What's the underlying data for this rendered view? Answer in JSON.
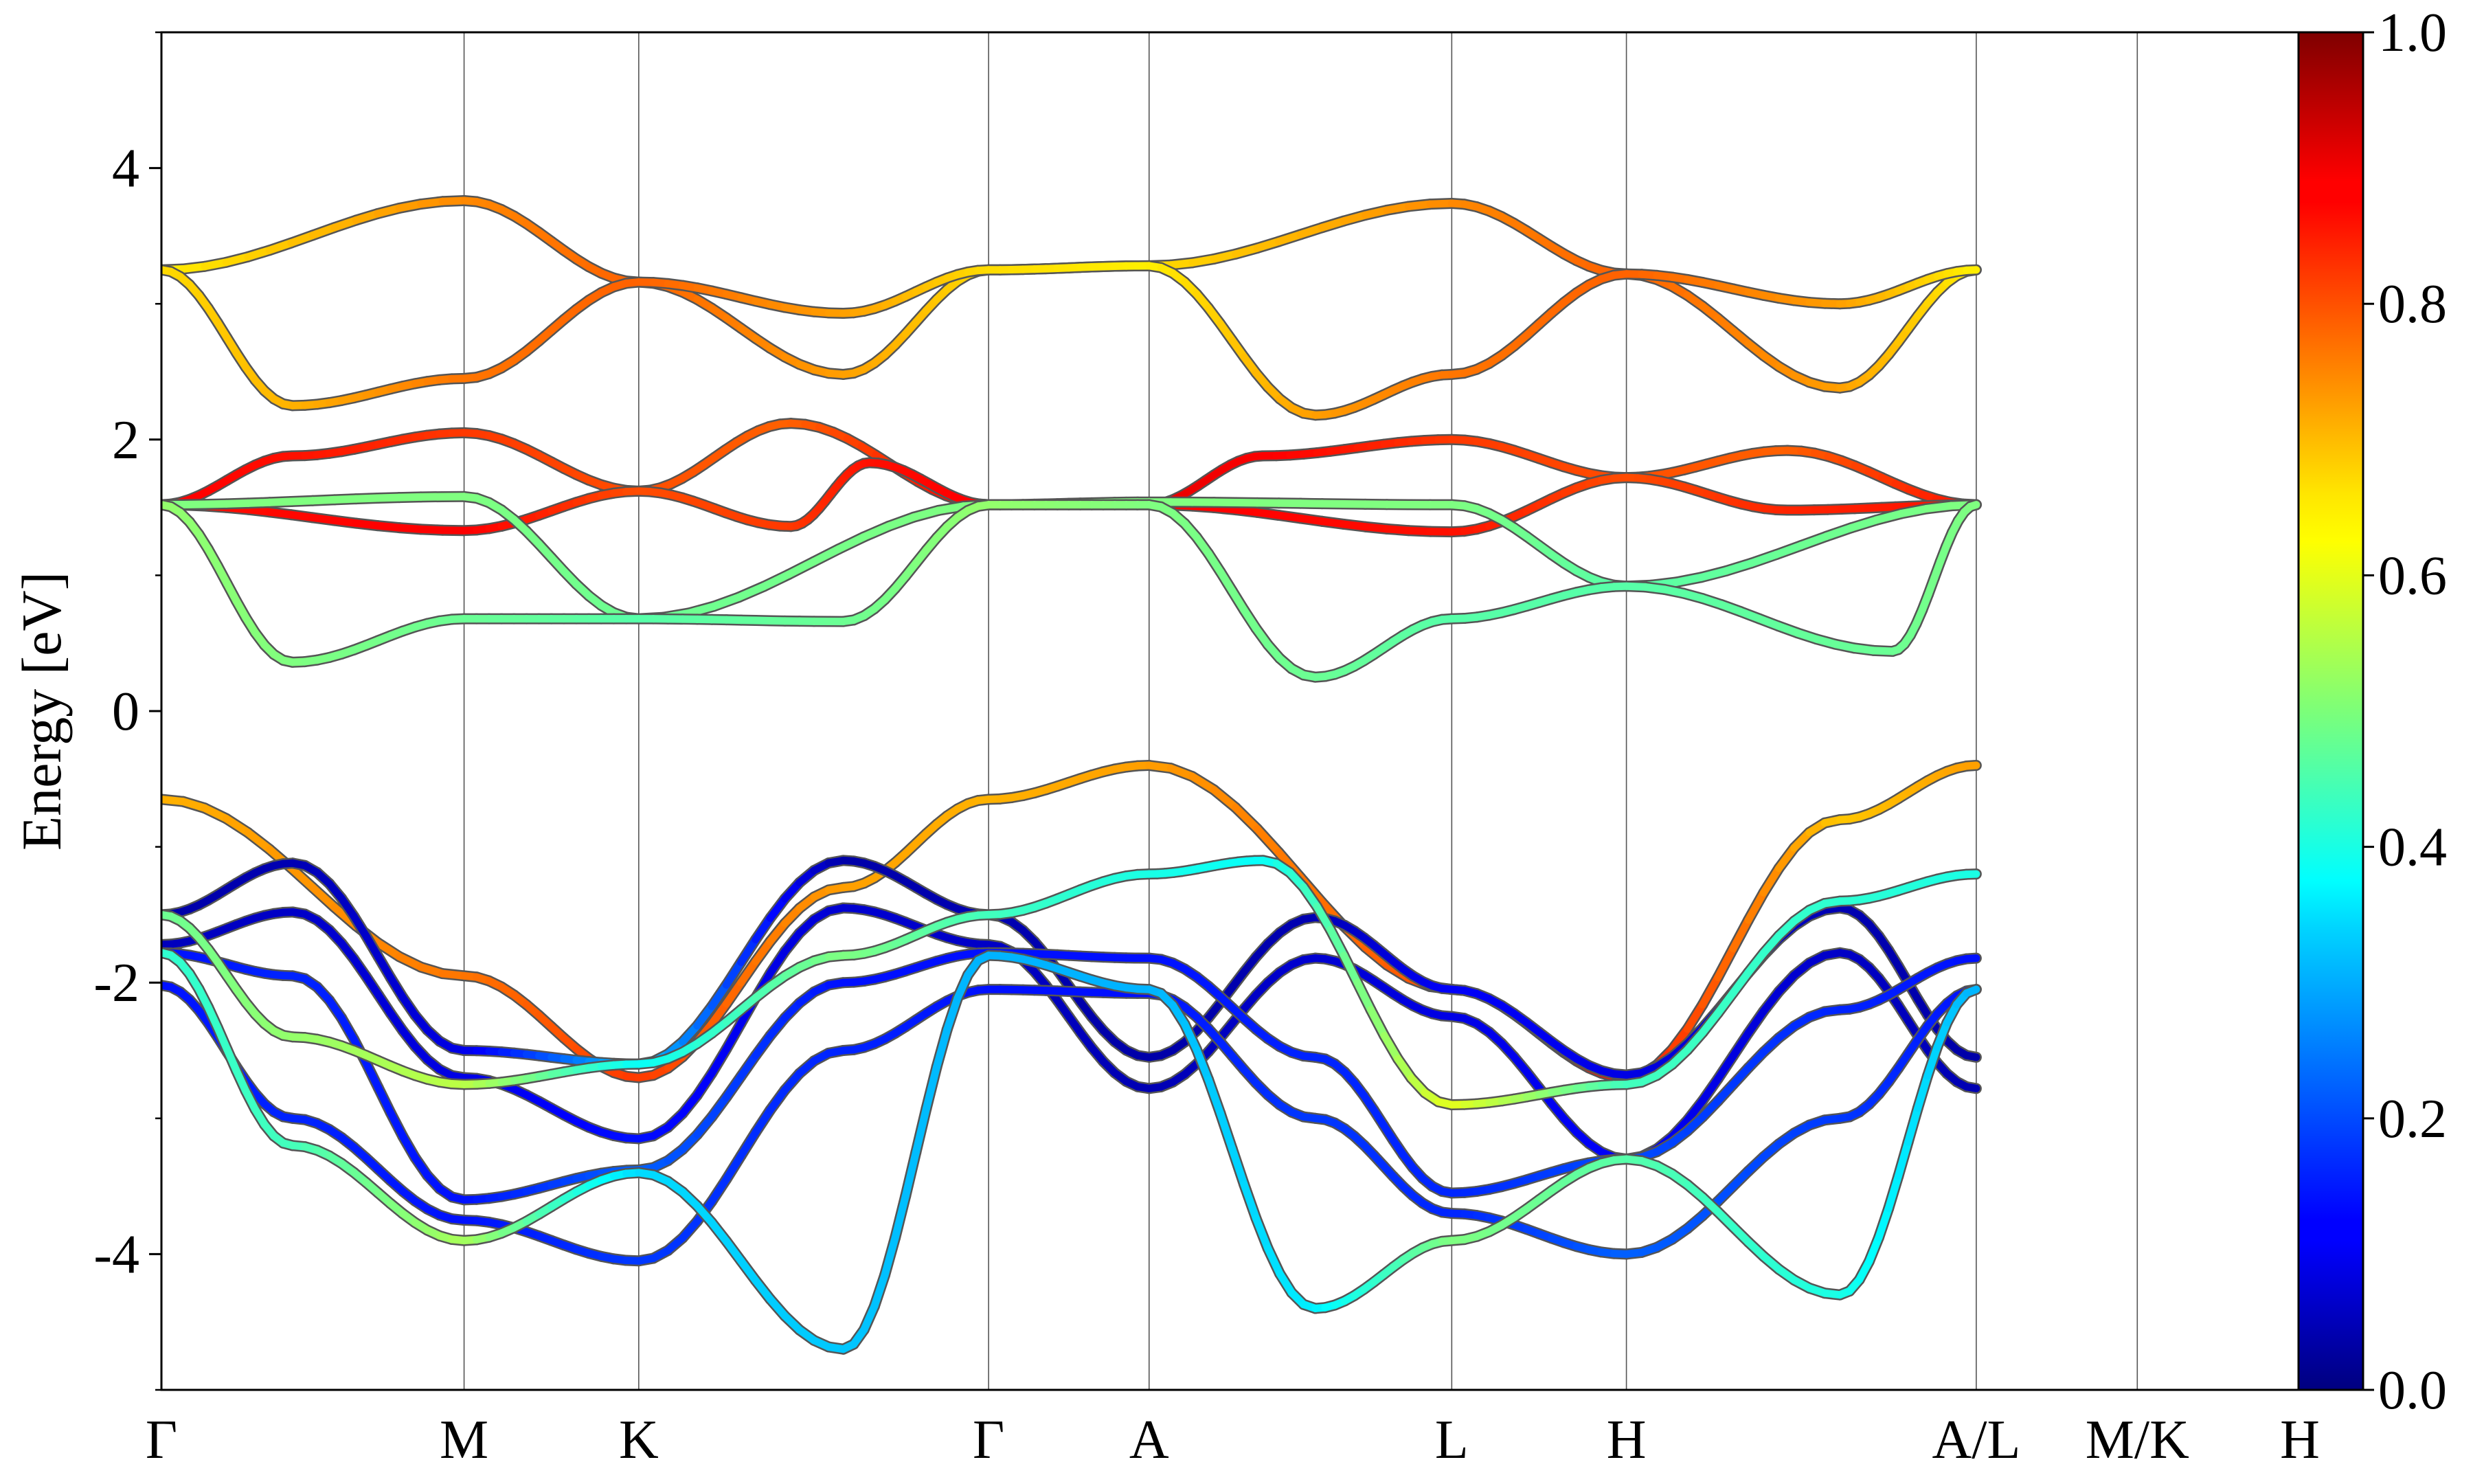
{
  "chart_data": {
    "type": "line",
    "title": "",
    "xlabel": "",
    "ylabel": "Energy [eV]",
    "ylim": [
      -5,
      5
    ],
    "yticks": [
      4,
      2,
      0,
      -2,
      -4
    ],
    "yticklabels": [
      "4",
      "2",
      "0",
      "-2",
      "-4"
    ],
    "kpath_labels": [
      "Γ",
      "M",
      "K",
      "Γ",
      "A",
      "L",
      "H",
      "A/L",
      "M/K",
      "H"
    ],
    "kpath_positions": [
      0.0,
      0.577,
      0.91,
      1.577,
      1.883,
      2.46,
      2.793,
      3.46,
      3.767,
      4.077
    ],
    "xlim": [
      0.0,
      4.077
    ],
    "colorbar": {
      "colormap": "jet",
      "range": [
        0.0,
        1.0
      ],
      "ticks": [
        0.0,
        0.2,
        0.4,
        0.6,
        0.8,
        1.0
      ],
      "ticklabels": [
        "0.0",
        "0.2",
        "0.4",
        "0.6",
        "0.8",
        "1.0"
      ]
    },
    "series": [
      {
        "values": [
          [
            0,
            1.52,
            0.88
          ],
          [
            0.25,
            1.88,
            0.86
          ],
          [
            0.577,
            2.05,
            0.82
          ],
          [
            0.91,
            1.62,
            0.8
          ],
          [
            1.2,
            2.12,
            0.78
          ],
          [
            1.577,
            1.52,
            0.88
          ],
          [
            1.883,
            1.52,
            0.9
          ],
          [
            2.1,
            1.88,
            0.88
          ],
          [
            2.46,
            2.0,
            0.82
          ],
          [
            2.793,
            1.72,
            0.8
          ],
          [
            3.1,
            1.92,
            0.78
          ],
          [
            3.46,
            1.52,
            0.86
          ]
        ]
      },
      {
        "values": [
          [
            0,
            1.52,
            0.86
          ],
          [
            0.577,
            1.33,
            0.88
          ],
          [
            0.91,
            1.62,
            0.8
          ],
          [
            1.2,
            1.36,
            0.82
          ],
          [
            1.35,
            1.83,
            0.86
          ],
          [
            1.577,
            1.52,
            0.88
          ],
          [
            1.883,
            1.52,
            0.88
          ],
          [
            2.46,
            1.32,
            0.86
          ],
          [
            2.793,
            1.72,
            0.8
          ],
          [
            3.1,
            1.48,
            0.84
          ],
          [
            3.46,
            1.52,
            0.86
          ]
        ]
      },
      {
        "values": [
          [
            0,
            1.52,
            0.5
          ],
          [
            0.577,
            1.58,
            0.5
          ],
          [
            0.91,
            0.68,
            0.48
          ],
          [
            1.577,
            1.52,
            0.5
          ],
          [
            1.883,
            1.54,
            0.5
          ],
          [
            2.46,
            1.52,
            0.5
          ],
          [
            2.793,
            0.92,
            0.46
          ],
          [
            3.46,
            1.52,
            0.5
          ]
        ]
      },
      {
        "values": [
          [
            0,
            1.52,
            0.52
          ],
          [
            0.25,
            0.36,
            0.5
          ],
          [
            0.577,
            0.68,
            0.48
          ],
          [
            0.91,
            0.68,
            0.46
          ],
          [
            1.3,
            0.66,
            0.48
          ],
          [
            1.577,
            1.52,
            0.52
          ],
          [
            1.883,
            1.52,
            0.5
          ],
          [
            2.2,
            0.25,
            0.48
          ],
          [
            2.46,
            0.68,
            0.46
          ],
          [
            2.793,
            0.92,
            0.46
          ],
          [
            3.3,
            0.44,
            0.48
          ],
          [
            3.46,
            1.52,
            0.5
          ]
        ]
      },
      {
        "values": [
          [
            0,
            3.25,
            0.64
          ],
          [
            0.577,
            3.76,
            0.74
          ],
          [
            0.91,
            3.16,
            0.78
          ],
          [
            1.3,
            2.48,
            0.72
          ],
          [
            1.577,
            3.25,
            0.66
          ],
          [
            1.883,
            3.28,
            0.66
          ],
          [
            2.46,
            3.74,
            0.74
          ],
          [
            2.793,
            3.22,
            0.78
          ],
          [
            3.2,
            2.38,
            0.72
          ],
          [
            3.46,
            3.25,
            0.64
          ]
        ]
      },
      {
        "values": [
          [
            0,
            3.25,
            0.66
          ],
          [
            0.25,
            2.25,
            0.7
          ],
          [
            0.577,
            2.45,
            0.76
          ],
          [
            0.91,
            3.16,
            0.78
          ],
          [
            1.3,
            2.93,
            0.72
          ],
          [
            1.577,
            3.25,
            0.66
          ],
          [
            1.883,
            3.28,
            0.64
          ],
          [
            2.2,
            2.18,
            0.72
          ],
          [
            2.46,
            2.48,
            0.76
          ],
          [
            2.793,
            3.22,
            0.78
          ],
          [
            3.2,
            3.0,
            0.72
          ],
          [
            3.46,
            3.25,
            0.64
          ]
        ]
      },
      {
        "values": [
          [
            0,
            -0.65,
            0.7
          ],
          [
            0.577,
            -1.95,
            0.76
          ],
          [
            0.91,
            -2.7,
            0.82
          ],
          [
            1.3,
            -1.3,
            0.72
          ],
          [
            1.577,
            -0.65,
            0.7
          ],
          [
            1.883,
            -0.4,
            0.72
          ],
          [
            2.46,
            -2.05,
            0.8
          ],
          [
            2.793,
            -2.7,
            0.86
          ],
          [
            3.2,
            -0.8,
            0.68
          ],
          [
            3.46,
            -0.4,
            0.72
          ]
        ]
      },
      {
        "values": [
          [
            0,
            -1.5,
            0.04
          ],
          [
            0.25,
            -1.12,
            0.05
          ],
          [
            0.577,
            -2.5,
            0.1
          ],
          [
            0.91,
            -2.6,
            0.32
          ],
          [
            1.3,
            -1.1,
            0.04
          ],
          [
            1.577,
            -1.5,
            0.05
          ],
          [
            1.883,
            -2.55,
            0.04
          ],
          [
            2.2,
            -1.52,
            0.05
          ],
          [
            2.46,
            -2.05,
            0.12
          ],
          [
            2.793,
            -2.68,
            0.1
          ],
          [
            3.2,
            -1.45,
            0.05
          ],
          [
            3.46,
            -2.55,
            0.04
          ]
        ]
      },
      {
        "values": [
          [
            0,
            -1.72,
            0.06
          ],
          [
            0.25,
            -1.48,
            0.07
          ],
          [
            0.577,
            -2.7,
            0.1
          ],
          [
            0.91,
            -3.15,
            0.14
          ],
          [
            1.3,
            -1.45,
            0.08
          ],
          [
            1.577,
            -1.72,
            0.07
          ],
          [
            1.883,
            -2.78,
            0.05
          ],
          [
            2.2,
            -1.82,
            0.08
          ],
          [
            2.46,
            -2.25,
            0.1
          ],
          [
            2.793,
            -3.3,
            0.12
          ],
          [
            3.2,
            -1.78,
            0.07
          ],
          [
            3.46,
            -2.78,
            0.05
          ]
        ]
      },
      {
        "values": [
          [
            0,
            -1.78,
            0.14
          ],
          [
            0.25,
            -1.95,
            0.16
          ],
          [
            0.577,
            -3.6,
            0.14
          ],
          [
            0.91,
            -3.38,
            0.22
          ],
          [
            1.3,
            -2.0,
            0.14
          ],
          [
            1.577,
            -1.78,
            0.14
          ],
          [
            1.883,
            -1.82,
            0.14
          ],
          [
            2.2,
            -2.55,
            0.16
          ],
          [
            2.46,
            -3.55,
            0.16
          ],
          [
            2.793,
            -3.3,
            0.2
          ],
          [
            3.2,
            -2.2,
            0.16
          ],
          [
            3.46,
            -1.82,
            0.14
          ]
        ]
      },
      {
        "values": [
          [
            0,
            -2.02,
            0.14
          ],
          [
            0.25,
            -3.0,
            0.16
          ],
          [
            0.577,
            -3.75,
            0.14
          ],
          [
            0.91,
            -4.05,
            0.18
          ],
          [
            1.3,
            -2.5,
            0.16
          ],
          [
            1.577,
            -2.05,
            0.14
          ],
          [
            1.883,
            -2.08,
            0.14
          ],
          [
            2.2,
            -3.0,
            0.18
          ],
          [
            2.46,
            -3.7,
            0.16
          ],
          [
            2.793,
            -4.0,
            0.22
          ],
          [
            3.2,
            -3.0,
            0.18
          ],
          [
            3.46,
            -2.05,
            0.14
          ]
        ]
      },
      {
        "values": [
          [
            0,
            -1.5,
            0.48
          ],
          [
            0.25,
            -2.4,
            0.52
          ],
          [
            0.577,
            -2.75,
            0.56
          ],
          [
            0.91,
            -2.6,
            0.38
          ],
          [
            1.3,
            -1.8,
            0.5
          ],
          [
            1.577,
            -1.5,
            0.44
          ],
          [
            1.883,
            -1.2,
            0.4
          ],
          [
            2.1,
            -1.1,
            0.38
          ],
          [
            2.46,
            -2.9,
            0.6
          ],
          [
            2.793,
            -2.75,
            0.44
          ],
          [
            3.2,
            -1.4,
            0.42
          ],
          [
            3.46,
            -1.2,
            0.4
          ]
        ]
      },
      {
        "values": [
          [
            0,
            -1.78,
            0.42
          ],
          [
            0.25,
            -3.2,
            0.44
          ],
          [
            0.577,
            -3.9,
            0.54
          ],
          [
            0.91,
            -3.4,
            0.34
          ],
          [
            1.3,
            -4.7,
            0.32
          ],
          [
            1.577,
            -1.8,
            0.3
          ],
          [
            1.883,
            -2.05,
            0.3
          ],
          [
            2.2,
            -4.4,
            0.36
          ],
          [
            2.46,
            -3.9,
            0.5
          ],
          [
            2.793,
            -3.3,
            0.46
          ],
          [
            3.2,
            -4.3,
            0.4
          ],
          [
            3.46,
            -2.05,
            0.3
          ]
        ]
      }
    ]
  }
}
